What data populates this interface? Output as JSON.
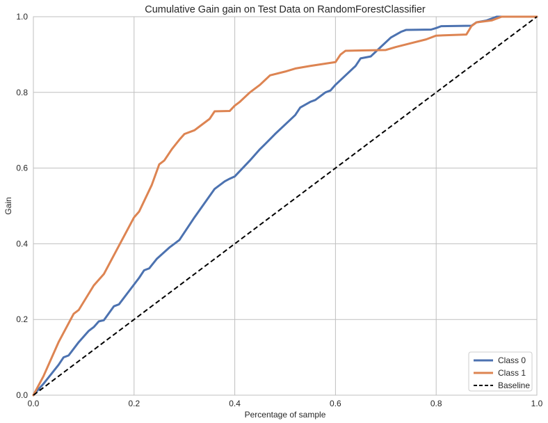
{
  "chart_data": {
    "type": "line",
    "title": "Cumulative Gain gain on Test Data on RandomForestClassifier",
    "xlabel": "Percentage of sample",
    "ylabel": "Gain",
    "xlim": [
      0,
      1
    ],
    "ylim": [
      0,
      1
    ],
    "x_ticks": [
      "0.0",
      "0.2",
      "0.4",
      "0.6",
      "0.8",
      "1.0"
    ],
    "y_ticks": [
      "0.0",
      "0.2",
      "0.4",
      "0.6",
      "0.8",
      "1.0"
    ],
    "grid": true,
    "legend_position": "bottom-right",
    "series": [
      {
        "name": "Class 0",
        "color": "#4c72b0",
        "style": "solid",
        "points": [
          [
            0,
            0
          ],
          [
            0.02,
            0.03
          ],
          [
            0.05,
            0.08
          ],
          [
            0.06,
            0.1
          ],
          [
            0.07,
            0.105
          ],
          [
            0.09,
            0.14
          ],
          [
            0.11,
            0.17
          ],
          [
            0.12,
            0.18
          ],
          [
            0.13,
            0.195
          ],
          [
            0.14,
            0.198
          ],
          [
            0.16,
            0.235
          ],
          [
            0.17,
            0.24
          ],
          [
            0.19,
            0.275
          ],
          [
            0.21,
            0.31
          ],
          [
            0.22,
            0.33
          ],
          [
            0.23,
            0.335
          ],
          [
            0.245,
            0.36
          ],
          [
            0.27,
            0.39
          ],
          [
            0.28,
            0.4
          ],
          [
            0.29,
            0.41
          ],
          [
            0.32,
            0.47
          ],
          [
            0.36,
            0.545
          ],
          [
            0.38,
            0.565
          ],
          [
            0.39,
            0.572
          ],
          [
            0.4,
            0.578
          ],
          [
            0.43,
            0.62
          ],
          [
            0.45,
            0.65
          ],
          [
            0.46,
            0.663
          ],
          [
            0.48,
            0.69
          ],
          [
            0.5,
            0.715
          ],
          [
            0.52,
            0.74
          ],
          [
            0.53,
            0.76
          ],
          [
            0.55,
            0.775
          ],
          [
            0.56,
            0.78
          ],
          [
            0.58,
            0.8
          ],
          [
            0.59,
            0.805
          ],
          [
            0.6,
            0.82
          ],
          [
            0.62,
            0.845
          ],
          [
            0.64,
            0.87
          ],
          [
            0.65,
            0.89
          ],
          [
            0.67,
            0.895
          ],
          [
            0.69,
            0.92
          ],
          [
            0.71,
            0.945
          ],
          [
            0.73,
            0.96
          ],
          [
            0.74,
            0.965
          ],
          [
            0.79,
            0.966
          ],
          [
            0.8,
            0.97
          ],
          [
            0.81,
            0.975
          ],
          [
            0.87,
            0.976
          ],
          [
            0.88,
            0.985
          ],
          [
            0.9,
            0.99
          ],
          [
            0.92,
            1.0
          ],
          [
            1.0,
            1.0
          ]
        ]
      },
      {
        "name": "Class 1",
        "color": "#dd8452",
        "style": "solid",
        "points": [
          [
            0,
            0
          ],
          [
            0.02,
            0.05
          ],
          [
            0.05,
            0.14
          ],
          [
            0.08,
            0.215
          ],
          [
            0.09,
            0.225
          ],
          [
            0.12,
            0.29
          ],
          [
            0.14,
            0.32
          ],
          [
            0.16,
            0.37
          ],
          [
            0.19,
            0.445
          ],
          [
            0.2,
            0.47
          ],
          [
            0.21,
            0.485
          ],
          [
            0.235,
            0.555
          ],
          [
            0.25,
            0.61
          ],
          [
            0.26,
            0.62
          ],
          [
            0.275,
            0.65
          ],
          [
            0.29,
            0.675
          ],
          [
            0.3,
            0.69
          ],
          [
            0.32,
            0.7
          ],
          [
            0.33,
            0.71
          ],
          [
            0.35,
            0.73
          ],
          [
            0.36,
            0.75
          ],
          [
            0.39,
            0.751
          ],
          [
            0.4,
            0.765
          ],
          [
            0.41,
            0.775
          ],
          [
            0.43,
            0.8
          ],
          [
            0.45,
            0.82
          ],
          [
            0.47,
            0.845
          ],
          [
            0.5,
            0.855
          ],
          [
            0.52,
            0.863
          ],
          [
            0.55,
            0.87
          ],
          [
            0.6,
            0.88
          ],
          [
            0.61,
            0.9
          ],
          [
            0.62,
            0.91
          ],
          [
            0.7,
            0.912
          ],
          [
            0.72,
            0.92
          ],
          [
            0.75,
            0.93
          ],
          [
            0.78,
            0.94
          ],
          [
            0.8,
            0.95
          ],
          [
            0.86,
            0.953
          ],
          [
            0.87,
            0.975
          ],
          [
            0.88,
            0.985
          ],
          [
            0.91,
            0.99
          ],
          [
            0.93,
            1.0
          ],
          [
            1.0,
            1.0
          ]
        ]
      },
      {
        "name": "Baseline",
        "color": "#000000",
        "style": "dashed",
        "points": [
          [
            0,
            0
          ],
          [
            1,
            1
          ]
        ]
      }
    ]
  }
}
